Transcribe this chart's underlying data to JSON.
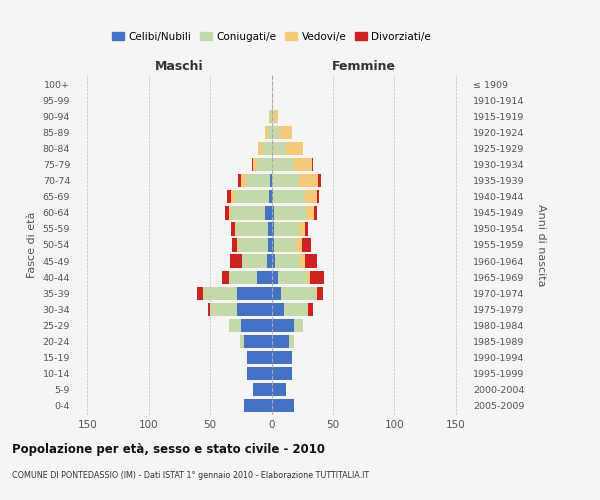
{
  "age_groups": [
    "0-4",
    "5-9",
    "10-14",
    "15-19",
    "20-24",
    "25-29",
    "30-34",
    "35-39",
    "40-44",
    "45-49",
    "50-54",
    "55-59",
    "60-64",
    "65-69",
    "70-74",
    "75-79",
    "80-84",
    "85-89",
    "90-94",
    "95-99",
    "100+"
  ],
  "birth_years": [
    "2005-2009",
    "2000-2004",
    "1995-1999",
    "1990-1994",
    "1985-1989",
    "1980-1984",
    "1975-1979",
    "1970-1974",
    "1965-1969",
    "1960-1964",
    "1955-1959",
    "1950-1954",
    "1945-1949",
    "1940-1944",
    "1935-1939",
    "1930-1934",
    "1925-1929",
    "1920-1924",
    "1915-1919",
    "1910-1914",
    "≤ 1909"
  ],
  "males": {
    "celibi": [
      22,
      15,
      20,
      20,
      22,
      25,
      28,
      28,
      12,
      4,
      3,
      3,
      5,
      2,
      1,
      0,
      0,
      0,
      0,
      0,
      0
    ],
    "coniugati": [
      0,
      0,
      0,
      0,
      4,
      10,
      22,
      28,
      23,
      20,
      24,
      26,
      28,
      28,
      20,
      12,
      7,
      3,
      1,
      0,
      0
    ],
    "vedovi": [
      0,
      0,
      0,
      0,
      0,
      0,
      0,
      0,
      0,
      0,
      1,
      1,
      2,
      3,
      4,
      3,
      4,
      2,
      1,
      0,
      0
    ],
    "divorziati": [
      0,
      0,
      0,
      0,
      0,
      0,
      2,
      5,
      5,
      10,
      4,
      3,
      3,
      3,
      2,
      1,
      0,
      0,
      0,
      0,
      0
    ]
  },
  "females": {
    "nubili": [
      18,
      12,
      17,
      17,
      14,
      18,
      10,
      8,
      5,
      3,
      2,
      2,
      2,
      1,
      0,
      0,
      0,
      0,
      0,
      0,
      0
    ],
    "coniugate": [
      0,
      0,
      0,
      0,
      4,
      8,
      20,
      28,
      24,
      20,
      18,
      20,
      26,
      26,
      22,
      18,
      12,
      7,
      2,
      0,
      0
    ],
    "vedove": [
      0,
      0,
      0,
      0,
      0,
      0,
      0,
      1,
      2,
      4,
      5,
      5,
      7,
      10,
      16,
      15,
      14,
      10,
      3,
      1,
      0
    ],
    "divorziate": [
      0,
      0,
      0,
      0,
      0,
      0,
      4,
      5,
      12,
      10,
      7,
      3,
      2,
      2,
      2,
      1,
      0,
      0,
      0,
      0,
      0
    ]
  },
  "colors": {
    "celibi": "#4472c4",
    "coniugati": "#c5d9a8",
    "vedovi": "#f5c97a",
    "divorziati": "#cc2222"
  },
  "xlim": 160,
  "xticks": [
    -150,
    -100,
    -50,
    0,
    50,
    100,
    150
  ],
  "title": "Popolazione per età, sesso e stato civile - 2010",
  "subtitle": "COMUNE DI PONTEDASSIO (IM) - Dati ISTAT 1° gennaio 2010 - Elaborazione TUTTITALIA.IT",
  "ylabel_left": "Fasce di età",
  "ylabel_right": "Anni di nascita",
  "xlabel_left": "Maschi",
  "xlabel_right": "Femmine",
  "legend_labels": [
    "Celibi/Nubili",
    "Coniugati/e",
    "Vedovi/e",
    "Divorziati/e"
  ],
  "bg_color": "#f5f5f5",
  "plot_bg": "#f5f5f5"
}
